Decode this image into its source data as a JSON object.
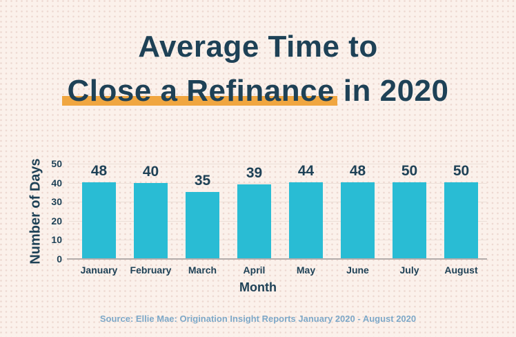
{
  "poster": {
    "title_line1": "Average Time to",
    "title_line2_highlighted": "Close a Refinance",
    "title_line2_rest": " in 2020",
    "source": "Source: Ellie Mae: Origination Insight Reports January 2020 - August 2020"
  },
  "chart_data": {
    "type": "bar",
    "title": "Average Time to Close a Refinance in 2020",
    "categories": [
      "January",
      "February",
      "March",
      "April",
      "May",
      "June",
      "July",
      "August"
    ],
    "values": [
      48,
      40,
      35,
      39,
      44,
      48,
      50,
      50
    ],
    "xlabel": "Month",
    "ylabel": "Number of Days",
    "ylim": [
      0,
      50
    ],
    "yticks": [
      0,
      10,
      20,
      30,
      40,
      50
    ],
    "grid": true,
    "legend": false,
    "data_labels": true,
    "bar_color": "#29bcd4"
  },
  "colors": {
    "background": "#fbf1eb",
    "dot_grid": "#efdcd4",
    "text_navy": "#1e4156",
    "highlight_orange": "#f0a640",
    "bar_cyan": "#29bcd4",
    "axis_gray": "#b3acaa",
    "gridline": "#ecdfd7",
    "source_blue": "#7da8c8"
  }
}
